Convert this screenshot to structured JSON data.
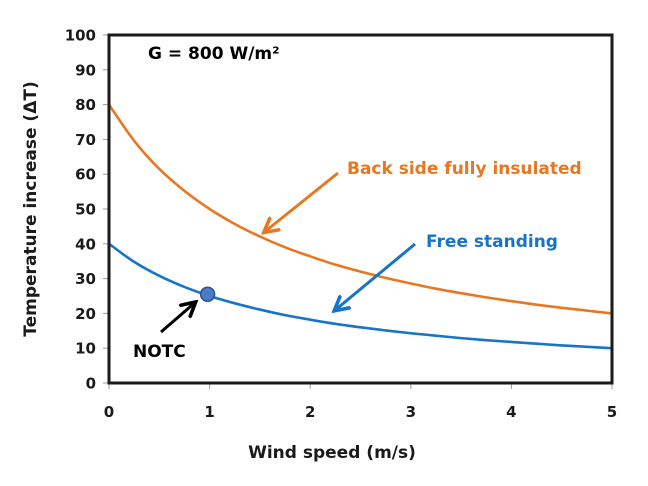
{
  "chart_data": {
    "type": "line",
    "title": "",
    "xlabel": "Wind speed (m/s)",
    "ylabel": "Temperature  increase (ΔT)",
    "xlim": [
      0,
      5
    ],
    "ylim": [
      0,
      100
    ],
    "xticks": [
      0,
      1,
      2,
      3,
      4,
      5
    ],
    "yticks": [
      0,
      10,
      20,
      30,
      40,
      50,
      60,
      70,
      80,
      90,
      100
    ],
    "xtick_labels": [
      "0",
      "1",
      "2",
      "3",
      "4",
      "5"
    ],
    "ytick_labels": [
      "0",
      "10",
      "20",
      "30",
      "40",
      "50",
      "60",
      "70",
      "80",
      "90",
      "100"
    ],
    "grid": false,
    "legend": "none",
    "x": [
      0,
      0.25,
      0.5,
      0.75,
      1,
      1.25,
      1.5,
      1.75,
      2,
      2.25,
      2.5,
      2.75,
      3,
      3.25,
      3.5,
      3.75,
      4,
      4.25,
      4.5,
      4.75,
      5
    ],
    "series": [
      {
        "name": "Back side fully insulated",
        "color": "#E87722",
        "values": [
          80,
          69.6,
          61.5,
          55.2,
          50,
          45.7,
          42.1,
          39,
          36.4,
          34,
          32,
          30.2,
          28.6,
          27.1,
          25.8,
          24.6,
          23.5,
          22.5,
          21.6,
          20.8,
          20
        ]
      },
      {
        "name": "Free standing",
        "color": "#1874C8",
        "values": [
          40,
          34.8,
          30.8,
          27.6,
          25,
          22.9,
          21.1,
          19.5,
          18.2,
          17,
          16,
          15.1,
          14.3,
          13.6,
          12.9,
          12.3,
          11.8,
          11.3,
          10.8,
          10.4,
          10
        ]
      }
    ],
    "annotations": [
      {
        "id": "irradiance",
        "text": "G = 800 W/m²",
        "color": "#000000"
      },
      {
        "id": "insulated-label",
        "text": "Back side fully insulated",
        "color": "#E87722",
        "arrow_to": {
          "x": 1.55,
          "y": 43.5
        }
      },
      {
        "id": "free-label",
        "text": "Free standing",
        "color": "#1874C8",
        "arrow_to": {
          "x": 2.25,
          "y": 21
        }
      },
      {
        "id": "notc-label",
        "text": "NOTC",
        "color": "#000000",
        "arrow_to": {
          "x": 0.85,
          "y": 23.0
        }
      }
    ],
    "markers": [
      {
        "name": "NOTC",
        "x": 0.98,
        "y": 25.5,
        "fill": "#4A7CC7",
        "stroke": "#2F528F"
      }
    ]
  }
}
